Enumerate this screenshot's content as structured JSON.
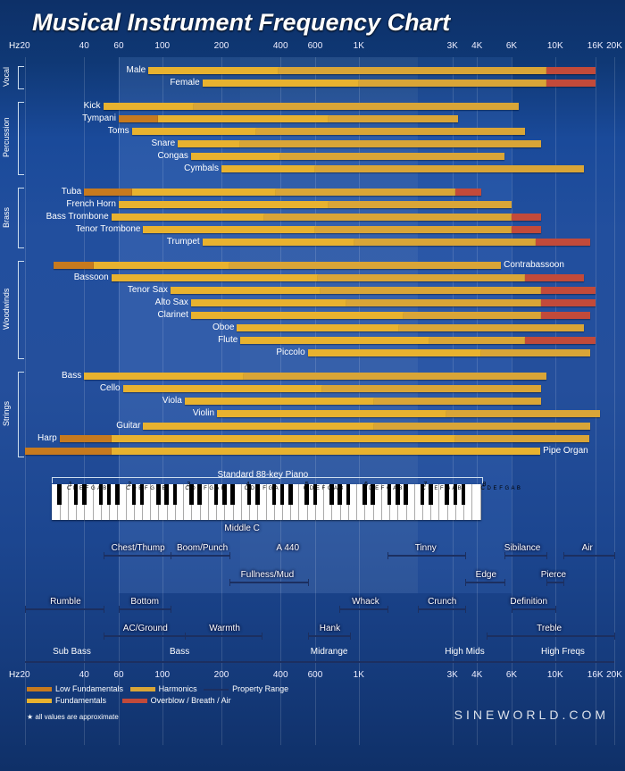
{
  "title": "Musical Instrument Frequency Chart",
  "axis": {
    "hz_label": "Hz",
    "ticks": [
      {
        "v": 20,
        "l": "20"
      },
      {
        "v": 40,
        "l": "40"
      },
      {
        "v": 60,
        "l": "60"
      },
      {
        "v": 100,
        "l": "100"
      },
      {
        "v": 200,
        "l": "200"
      },
      {
        "v": 400,
        "l": "400"
      },
      {
        "v": 600,
        "l": "600"
      },
      {
        "v": 1000,
        "l": "1K"
      },
      {
        "v": 3000,
        "l": "3K"
      },
      {
        "v": 4000,
        "l": "4K"
      },
      {
        "v": 6000,
        "l": "6K"
      },
      {
        "v": 10000,
        "l": "10K"
      },
      {
        "v": 16000,
        "l": "16K"
      },
      {
        "v": 20000,
        "l": "20K"
      }
    ],
    "min": 20,
    "max": 20000
  },
  "bands": [
    {
      "from": 60,
      "to": 250
    },
    {
      "from": 250,
      "to": 2000
    },
    {
      "from": 2000,
      "to": 6000
    }
  ],
  "colors": {
    "low_fund": "#c77a1e",
    "fund": "#e8b22f",
    "harm": "#d9a537",
    "overblow": "#c24a3a",
    "descriptor_line": "#1c2f60",
    "grid": "rgba(255,255,255,0.14)"
  },
  "groups": [
    {
      "name": "Vocal",
      "from": 0,
      "to": 1
    },
    {
      "name": "Percussion",
      "from": 2,
      "to": 7
    },
    {
      "name": "Brass",
      "from": 8,
      "to": 12
    },
    {
      "name": "Woodwinds",
      "from": 13,
      "to": 20
    },
    {
      "name": "Strings",
      "from": 21,
      "to": 27
    }
  ],
  "instruments": [
    {
      "name": "Male",
      "label_at": 85,
      "segs": [
        {
          "c": "fund",
          "f": 85,
          "t": 390
        },
        {
          "c": "harm",
          "f": 390,
          "t": 9000
        },
        {
          "c": "overblow",
          "f": 9000,
          "t": 16000
        }
      ]
    },
    {
      "name": "Female",
      "label_at": 160,
      "segs": [
        {
          "c": "fund",
          "f": 160,
          "t": 1000
        },
        {
          "c": "harm",
          "f": 1000,
          "t": 9000
        },
        {
          "c": "overblow",
          "f": 9000,
          "t": 16000
        }
      ]
    },
    {
      "name": "Kick",
      "label_at": 50,
      "segs": [
        {
          "c": "fund",
          "f": 50,
          "t": 145
        },
        {
          "c": "harm",
          "f": 145,
          "t": 6500
        }
      ]
    },
    {
      "name": "Tympani",
      "label_at": 60,
      "segs": [
        {
          "c": "low_fund",
          "f": 60,
          "t": 95
        },
        {
          "c": "fund",
          "f": 95,
          "t": 700
        },
        {
          "c": "harm",
          "f": 700,
          "t": 3200
        }
      ]
    },
    {
      "name": "Toms",
      "label_at": 70,
      "segs": [
        {
          "c": "fund",
          "f": 70,
          "t": 300
        },
        {
          "c": "harm",
          "f": 300,
          "t": 7000
        }
      ]
    },
    {
      "name": "Snare",
      "label_at": 120,
      "segs": [
        {
          "c": "fund",
          "f": 120,
          "t": 250
        },
        {
          "c": "harm",
          "f": 250,
          "t": 8500
        }
      ]
    },
    {
      "name": "Congas",
      "label_at": 140,
      "segs": [
        {
          "c": "fund",
          "f": 140,
          "t": 400
        },
        {
          "c": "harm",
          "f": 400,
          "t": 5500
        }
      ]
    },
    {
      "name": "Cymbals",
      "label_at": 200,
      "segs": [
        {
          "c": "fund",
          "f": 200,
          "t": 600
        },
        {
          "c": "harm",
          "f": 600,
          "t": 14000
        }
      ]
    },
    {
      "name": "Tuba",
      "label_at": 40,
      "segs": [
        {
          "c": "low_fund",
          "f": 40,
          "t": 70
        },
        {
          "c": "fund",
          "f": 70,
          "t": 380
        },
        {
          "c": "harm",
          "f": 380,
          "t": 3100
        },
        {
          "c": "overblow",
          "f": 3100,
          "t": 4200
        }
      ]
    },
    {
      "name": "French Horn",
      "label_at": 60,
      "segs": [
        {
          "c": "fund",
          "f": 60,
          "t": 700
        },
        {
          "c": "harm",
          "f": 700,
          "t": 6000
        }
      ]
    },
    {
      "name": "Bass Trombone",
      "label_at": 55,
      "segs": [
        {
          "c": "fund",
          "f": 55,
          "t": 330
        },
        {
          "c": "harm",
          "f": 330,
          "t": 6000
        },
        {
          "c": "overblow",
          "f": 6000,
          "t": 8500
        }
      ]
    },
    {
      "name": "Tenor Trombone",
      "label_at": 80,
      "segs": [
        {
          "c": "fund",
          "f": 80,
          "t": 600
        },
        {
          "c": "harm",
          "f": 600,
          "t": 6000
        },
        {
          "c": "overblow",
          "f": 6000,
          "t": 8500
        }
      ]
    },
    {
      "name": "Trumpet",
      "label_at": 160,
      "segs": [
        {
          "c": "fund",
          "f": 160,
          "t": 950
        },
        {
          "c": "harm",
          "f": 950,
          "t": 8000
        },
        {
          "c": "overblow",
          "f": 8000,
          "t": 15000
        }
      ]
    },
    {
      "name": "Contrabassoon",
      "label_at": 5300,
      "right": true,
      "segs": [
        {
          "c": "low_fund",
          "f": 28,
          "t": 45
        },
        {
          "c": "fund",
          "f": 45,
          "t": 220
        },
        {
          "c": "harm",
          "f": 220,
          "t": 5300
        }
      ]
    },
    {
      "name": "Bassoon",
      "label_at": 55,
      "segs": [
        {
          "c": "fund",
          "f": 55,
          "t": 620
        },
        {
          "c": "harm",
          "f": 620,
          "t": 7000
        },
        {
          "c": "overblow",
          "f": 7000,
          "t": 14000
        }
      ]
    },
    {
      "name": "Tenor Sax",
      "label_at": 110,
      "segs": [
        {
          "c": "fund",
          "f": 110,
          "t": 640
        },
        {
          "c": "harm",
          "f": 640,
          "t": 8500
        },
        {
          "c": "overblow",
          "f": 8500,
          "t": 16000
        }
      ]
    },
    {
      "name": "Alto Sax",
      "label_at": 140,
      "segs": [
        {
          "c": "fund",
          "f": 140,
          "t": 870
        },
        {
          "c": "harm",
          "f": 870,
          "t": 8500
        },
        {
          "c": "overblow",
          "f": 8500,
          "t": 16000
        }
      ]
    },
    {
      "name": "Clarinet",
      "label_at": 140,
      "segs": [
        {
          "c": "fund",
          "f": 140,
          "t": 1700
        },
        {
          "c": "harm",
          "f": 1700,
          "t": 8500
        },
        {
          "c": "overblow",
          "f": 8500,
          "t": 15000
        }
      ]
    },
    {
      "name": "Oboe",
      "label_at": 240,
      "segs": [
        {
          "c": "fund",
          "f": 240,
          "t": 1600
        },
        {
          "c": "harm",
          "f": 1600,
          "t": 14000
        }
      ]
    },
    {
      "name": "Flute",
      "label_at": 250,
      "segs": [
        {
          "c": "fund",
          "f": 250,
          "t": 2300
        },
        {
          "c": "harm",
          "f": 2300,
          "t": 7000
        },
        {
          "c": "overblow",
          "f": 7000,
          "t": 16000
        }
      ]
    },
    {
      "name": "Piccolo",
      "label_at": 550,
      "segs": [
        {
          "c": "fund",
          "f": 550,
          "t": 4200
        },
        {
          "c": "harm",
          "f": 4200,
          "t": 15000
        }
      ]
    },
    {
      "name": "Bass",
      "label_at": 40,
      "segs": [
        {
          "c": "fund",
          "f": 40,
          "t": 260
        },
        {
          "c": "harm",
          "f": 260,
          "t": 9000
        }
      ]
    },
    {
      "name": "Cello",
      "label_at": 63,
      "segs": [
        {
          "c": "fund",
          "f": 63,
          "t": 650
        },
        {
          "c": "harm",
          "f": 650,
          "t": 8500
        }
      ]
    },
    {
      "name": "Viola",
      "label_at": 130,
      "segs": [
        {
          "c": "fund",
          "f": 130,
          "t": 1200
        },
        {
          "c": "harm",
          "f": 1200,
          "t": 8500
        }
      ]
    },
    {
      "name": "Violin",
      "label_at": 190,
      "segs": [
        {
          "c": "fund",
          "f": 190,
          "t": 2800
        },
        {
          "c": "harm",
          "f": 2800,
          "t": 17000
        }
      ]
    },
    {
      "name": "Guitar",
      "label_at": 80,
      "segs": [
        {
          "c": "fund",
          "f": 80,
          "t": 1200
        },
        {
          "c": "harm",
          "f": 1200,
          "t": 15000
        }
      ]
    },
    {
      "name": "Harp",
      "label_at": 30,
      "segs": [
        {
          "c": "low_fund",
          "f": 30,
          "t": 55
        },
        {
          "c": "fund",
          "f": 55,
          "t": 3100
        },
        {
          "c": "harm",
          "f": 3100,
          "t": 15000
        }
      ]
    },
    {
      "name": "Pipe Organ",
      "label_at": 8400,
      "right": true,
      "segs": [
        {
          "c": "low_fund",
          "f": 20,
          "t": 55
        },
        {
          "c": "fund",
          "f": 55,
          "t": 8400
        }
      ]
    }
  ],
  "piano": {
    "caption": "Standard 88-key Piano",
    "low": 27.5,
    "high": 4186,
    "white_keys": 52,
    "middle_c_label": "Middle C",
    "a440_label": "A 440",
    "oct_string": "C D E F G A B",
    "octaves": [
      0,
      1,
      2,
      3,
      4,
      5,
      6,
      7,
      8,
      9
    ]
  },
  "descriptors": [
    {
      "t": "Chest/Thump",
      "f": 50,
      "to": 110,
      "row": 0
    },
    {
      "t": "Boom/Punch",
      "f": 110,
      "to": 220,
      "row": 0
    },
    {
      "t": "A 440",
      "f": 380,
      "to": 500,
      "row": 0,
      "noline": true
    },
    {
      "t": "Tinny",
      "f": 1400,
      "to": 3500,
      "row": 0
    },
    {
      "t": "Sibilance",
      "f": 5500,
      "to": 9000,
      "row": 0
    },
    {
      "t": "Air",
      "f": 11000,
      "to": 20000,
      "row": 0
    },
    {
      "t": "Fullness/Mud",
      "f": 220,
      "to": 550,
      "row": 1
    },
    {
      "t": "Edge",
      "f": 3500,
      "to": 5500,
      "row": 1
    },
    {
      "t": "Pierce",
      "f": 9000,
      "to": 11000,
      "row": 1
    },
    {
      "t": "Rumble",
      "f": 20,
      "to": 50,
      "row": 2
    },
    {
      "t": "Bottom",
      "f": 60,
      "to": 110,
      "row": 2
    },
    {
      "t": "Whack",
      "f": 800,
      "to": 1400,
      "row": 2
    },
    {
      "t": "Crunch",
      "f": 2000,
      "to": 3500,
      "row": 2
    },
    {
      "t": "Definition",
      "f": 6000,
      "to": 10000,
      "row": 2
    },
    {
      "t": "AC/Ground",
      "f": 50,
      "to": 130,
      "row": 3
    },
    {
      "t": "Warmth",
      "f": 130,
      "to": 320,
      "row": 3
    },
    {
      "t": "Hank",
      "f": 550,
      "to": 900,
      "row": 3
    },
    {
      "t": "Treble",
      "f": 4500,
      "to": 20000,
      "row": 3
    }
  ],
  "ranges": [
    {
      "t": "Sub Bass",
      "f": 20,
      "to": 60
    },
    {
      "t": "Bass",
      "f": 60,
      "to": 250
    },
    {
      "t": "Midrange",
      "f": 250,
      "to": 2000
    },
    {
      "t": "High Mids",
      "f": 2000,
      "to": 6000
    },
    {
      "t": "High Freqs",
      "f": 6000,
      "to": 20000
    }
  ],
  "legend": {
    "low": "Low Fundamentals",
    "fund": "Fundamentals",
    "harm": "Harmonics",
    "over": "Overblow / Breath / Air",
    "prop": "Property Range"
  },
  "footnote": "★ all values are approximate",
  "brand": "SINEWORLD.COM"
}
